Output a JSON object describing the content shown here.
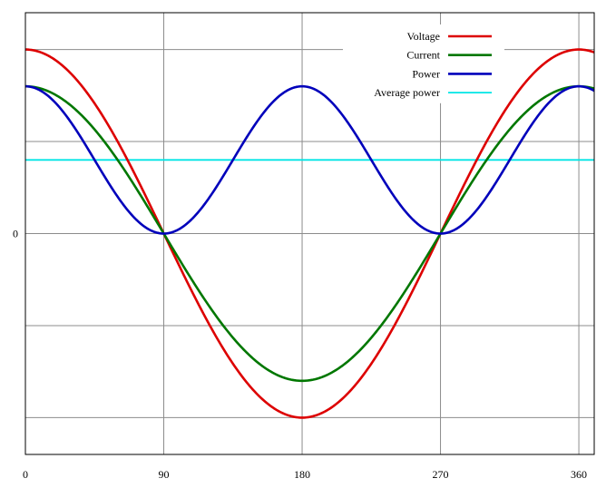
{
  "chart_data": {
    "type": "line",
    "title": "",
    "xlabel": "",
    "ylabel": "",
    "xlim": [
      0,
      370
    ],
    "ylim": [
      -1.2,
      1.2
    ],
    "grid": true,
    "legend_position": "top-right",
    "x_ticks": [
      0,
      90,
      180,
      270,
      360
    ],
    "x_tick_labels": [
      "0",
      "90",
      "180",
      "270",
      "360"
    ],
    "y_gridlines": [
      -1,
      -0.5,
      0,
      0.5,
      1
    ],
    "y_tick_labels": [
      {
        "value": 0,
        "label": "0"
      }
    ],
    "x_range_degrees": [
      0,
      370
    ],
    "series": [
      {
        "name": "Voltage",
        "color": "#dd0000",
        "function": "amplitude*cos(x)",
        "amplitude": 1.0
      },
      {
        "name": "Current",
        "color": "#007700",
        "function": "amplitude*cos(x)",
        "amplitude": 0.8
      },
      {
        "name": "Power",
        "color": "#0000bb",
        "function": "amplitude*cos(x)^2",
        "amplitude": 0.8
      },
      {
        "name": "Average power",
        "color": "#00e5e5",
        "function": "constant",
        "amplitude": 0.4
      }
    ]
  }
}
